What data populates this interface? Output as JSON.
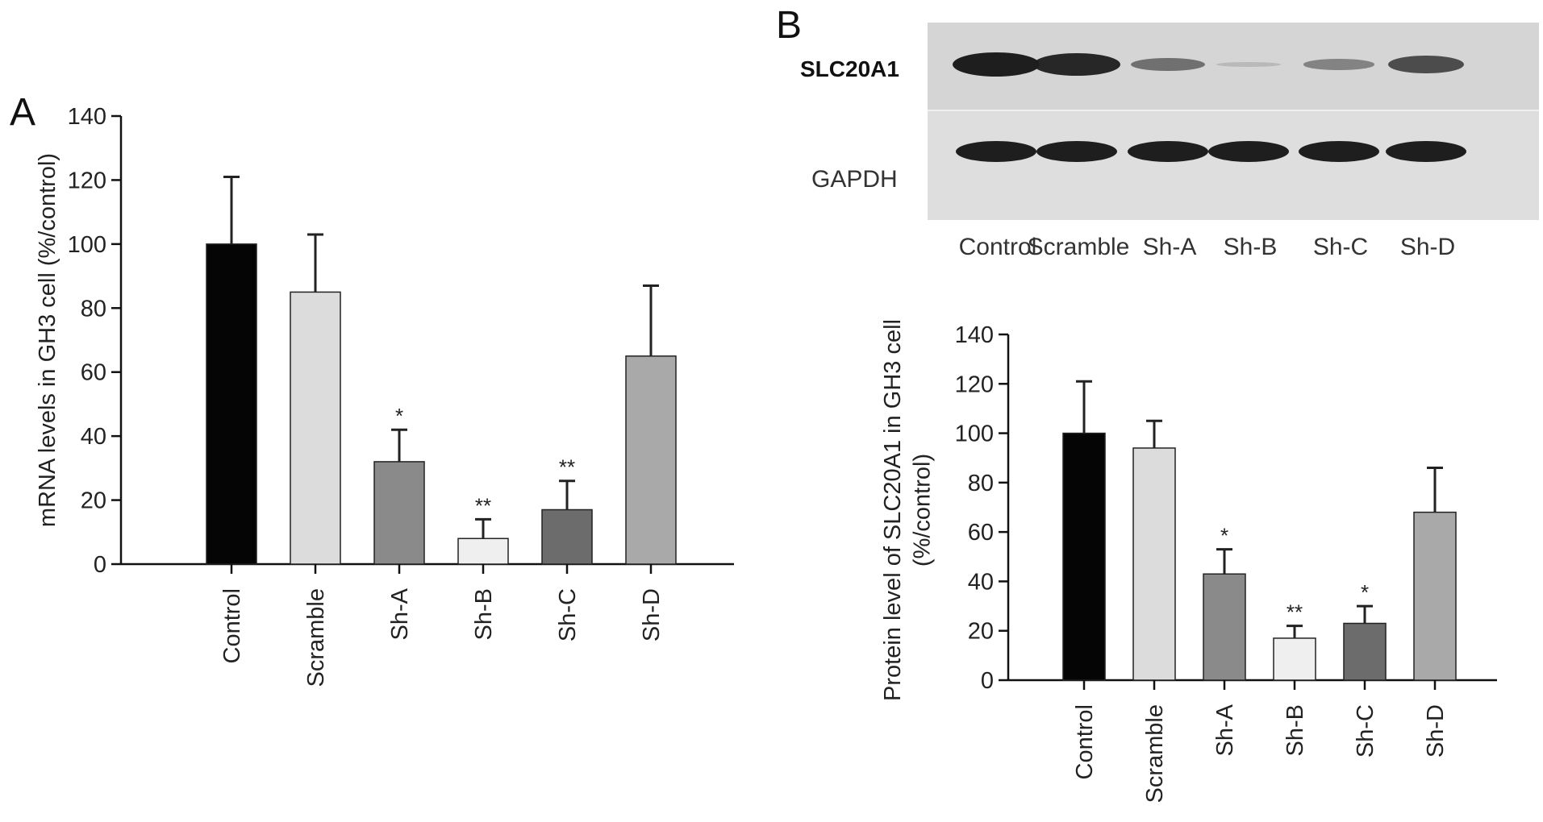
{
  "panels": {
    "a_letter": "A",
    "b_letter": "B"
  },
  "blot": {
    "target_label": "SLC20A1",
    "control_label": "GAPDH",
    "lanes": [
      "Control",
      "Scramble",
      "Sh-A",
      "Sh-B",
      "Sh-C",
      "Sh-D"
    ],
    "target_intensity": [
      1.0,
      0.95,
      0.55,
      0.15,
      0.45,
      0.75
    ],
    "control_intensity": [
      1.0,
      1.0,
      1.0,
      1.0,
      1.0,
      1.0
    ]
  },
  "chart_data": [
    {
      "type": "bar",
      "panel": "A",
      "ylabel": "mRNA levels in GH3 cell (%/control)",
      "xlabel": "",
      "ylim": [
        0,
        140
      ],
      "yticks": [
        0,
        20,
        40,
        60,
        80,
        100,
        120,
        140
      ],
      "categories": [
        "Control",
        "Scramble",
        "Sh-A",
        "Sh-B",
        "Sh-C",
        "Sh-D"
      ],
      "values": [
        100,
        85,
        32,
        8,
        17,
        65
      ],
      "errors": [
        21,
        18,
        10,
        6,
        9,
        22
      ],
      "significance": [
        "",
        "",
        "*",
        "**",
        "**",
        ""
      ],
      "colors": [
        "#050505",
        "#dcdcdc",
        "#8a8a8a",
        "#efefef",
        "#6c6c6c",
        "#a9a9a9"
      ]
    },
    {
      "type": "bar",
      "panel": "B",
      "ylabel": "Protein level of SLC20A1 in GH3 cell (%/control)",
      "xlabel": "",
      "ylim": [
        0,
        140
      ],
      "yticks": [
        0,
        20,
        40,
        60,
        80,
        100,
        120,
        140
      ],
      "categories": [
        "Control",
        "Scramble",
        "Sh-A",
        "Sh-B",
        "Sh-C",
        "Sh-D"
      ],
      "values": [
        100,
        94,
        43,
        17,
        23,
        68
      ],
      "errors": [
        21,
        11,
        10,
        5,
        7,
        18
      ],
      "significance": [
        "",
        "",
        "*",
        "**",
        "*",
        ""
      ],
      "colors": [
        "#050505",
        "#dcdcdc",
        "#8a8a8a",
        "#efefef",
        "#6c6c6c",
        "#a9a9a9"
      ]
    }
  ]
}
